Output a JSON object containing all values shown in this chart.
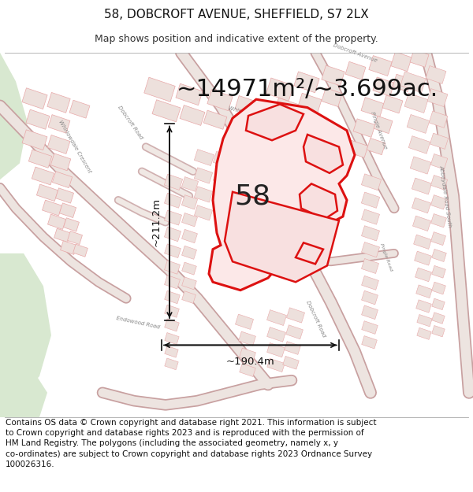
{
  "title": "58, DOBCROFT AVENUE, SHEFFIELD, S7 2LX",
  "subtitle": "Map shows position and indicative extent of the property.",
  "area_text": "~14971m²/~3.699ac.",
  "label_58": "58",
  "dim_horizontal": "~190.4m",
  "dim_vertical": "~211.2m",
  "footer_line1": "Contains OS data © Crown copyright and database right 2021. This information is subject",
  "footer_line2": "to Crown copyright and database rights 2023 and is reproduced with the permission of",
  "footer_line3": "HM Land Registry. The polygons (including the associated geometry, namely x, y",
  "footer_line4": "co-ordinates) are subject to Crown copyright and database rights 2023 Ordnance Survey",
  "footer_line5": "100026316.",
  "map_bg": "#f2ede8",
  "building_fill": "#ede0dc",
  "building_edge": "#e8a8a8",
  "road_color": "#f5f0ee",
  "road_edge": "#e0b8b8",
  "highlight_color": "#dd1111",
  "green_color": "#d8e8d0",
  "dim_line_color": "#111111",
  "text_color": "#222222",
  "title_fontsize": 11,
  "subtitle_fontsize": 9,
  "area_fontsize": 22,
  "label_fontsize": 26,
  "dim_fontsize": 9.5,
  "footer_fontsize": 7.5,
  "road_label_size": 5.5
}
